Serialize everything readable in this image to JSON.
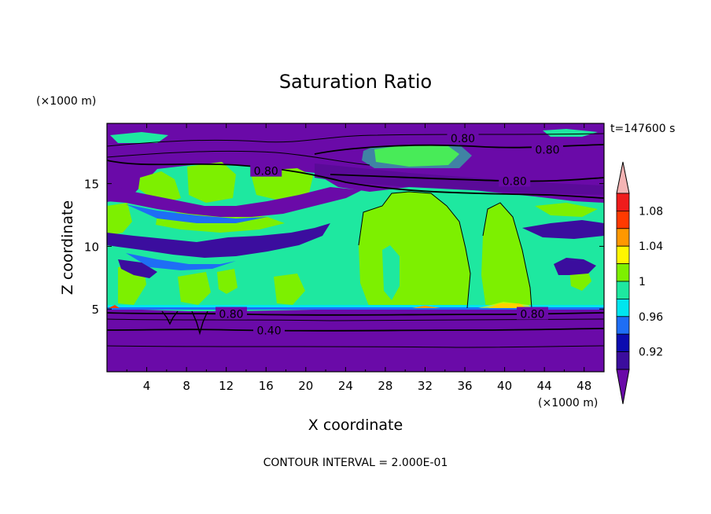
{
  "chart_data": {
    "type": "contour",
    "title": "Saturation Ratio",
    "xlabel": "X coordinate",
    "ylabel": "Z coordinate",
    "x_unit": "(×1000 m)",
    "y_unit": "(×1000 m)",
    "time_label": "t=147600 s",
    "footer": "CONTOUR INTERVAL = 2.000E-01",
    "xlim": [
      0,
      50
    ],
    "ylim": [
      0,
      19.8
    ],
    "x_ticks": [
      4,
      8,
      12,
      16,
      20,
      24,
      28,
      32,
      36,
      40,
      44,
      48
    ],
    "y_ticks": [
      5,
      10,
      15
    ],
    "colorbar": {
      "levels": [
        0.92,
        0.96,
        1,
        1.04,
        1.08
      ],
      "label_levels": [
        "0.92",
        "0.96",
        "1",
        "1.04",
        "1.08"
      ],
      "colors": [
        "#3b0d9e",
        "#0b0bb0",
        "#1e6ef5",
        "#00e5ef",
        "#1ee8a0",
        "#7df000",
        "#fff600",
        "#ff9800",
        "#ff3a00",
        "#ef1c1c",
        "#f4b4b4"
      ],
      "under_color": "#6a0aa8",
      "over_color": "#f4b4b4"
    },
    "contour_labels": [
      {
        "text": "0.80",
        "x": 35.8,
        "y": 18.6
      },
      {
        "text": "0.80",
        "x": 44.3,
        "y": 17.7
      },
      {
        "text": "0.80",
        "x": 16.0,
        "y": 16.0
      },
      {
        "text": "0.80",
        "x": 41.0,
        "y": 15.2
      },
      {
        "text": "0.80",
        "x": 12.5,
        "y": 4.6
      },
      {
        "text": "0.80",
        "x": 42.8,
        "y": 4.6
      },
      {
        "text": "0.40",
        "x": 16.3,
        "y": 3.3
      }
    ]
  }
}
